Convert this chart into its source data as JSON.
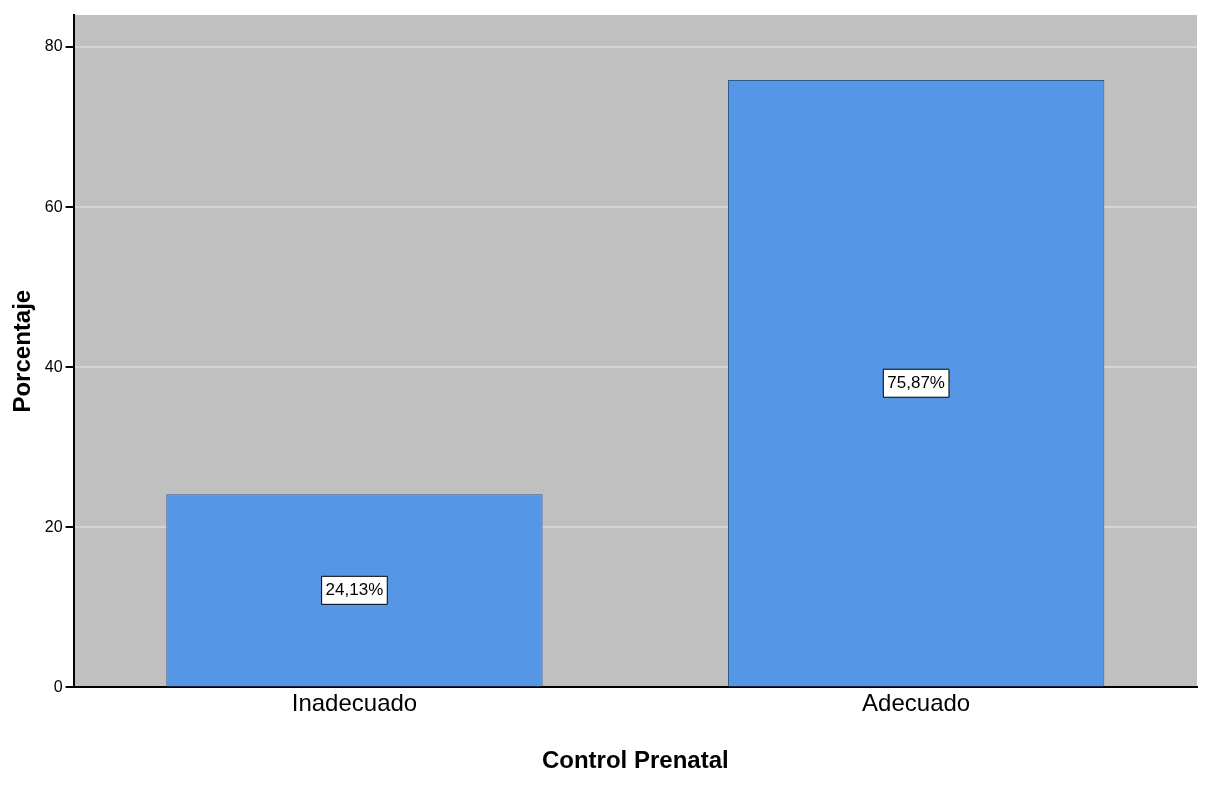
{
  "chart_data": {
    "type": "bar",
    "xlabel": "Control Prenatal",
    "ylabel": "Porcentaje",
    "categories": [
      "Inadecuado",
      "Adecuado"
    ],
    "values": [
      24.13,
      75.87
    ],
    "value_labels": [
      "24,13%",
      "75,87%"
    ],
    "color": "#5596e6",
    "ylim": [
      0,
      84
    ],
    "yticks": [
      0,
      20,
      40,
      60,
      80
    ],
    "grid": "y"
  }
}
